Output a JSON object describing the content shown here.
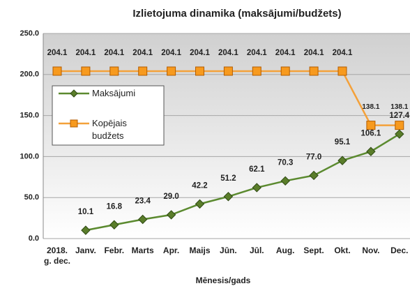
{
  "chart_data": {
    "type": "line",
    "title": "Izlietojuma dinamika (maksājumi/budžets)",
    "x_label": "Mēnesis/gads",
    "categories": [
      "2018. g. dec.",
      "Janv.",
      "Febr.",
      "Marts",
      "Apr.",
      "Maijs",
      "Jūn.",
      "Jūl.",
      "Aug.",
      "Sept.",
      "Okt.",
      "Nov.",
      "Dec."
    ],
    "series": [
      {
        "name": "Maksājumi",
        "color": "#5b8a2f",
        "marker": "diamond",
        "values": [
          null,
          10.1,
          16.8,
          23.4,
          29.0,
          42.2,
          51.2,
          62.1,
          70.3,
          77.0,
          95.1,
          106.1,
          127.4
        ],
        "value_labels": [
          null,
          "10.1",
          "16.8",
          "23.4",
          "29.0",
          "42.2",
          "51.2",
          "62.1",
          "70.3",
          "77.0",
          "95.1",
          "106.1",
          "127.4"
        ]
      },
      {
        "name": "Kopējais budžets",
        "color": "#f4a13a",
        "marker": "square",
        "values": [
          204.1,
          204.1,
          204.1,
          204.1,
          204.1,
          204.1,
          204.1,
          204.1,
          204.1,
          204.1,
          204.1,
          138.1,
          138.1
        ],
        "value_labels": [
          "204.1",
          "204.1",
          "204.1",
          "204.1",
          "204.1",
          "204.1",
          "204.1",
          "204.1",
          "204.1",
          "204.1",
          "204.1",
          "138.1",
          "138.1"
        ]
      }
    ],
    "ylim": [
      0,
      250
    ],
    "yticks": [
      {
        "value": 0,
        "label": "0.0"
      },
      {
        "value": 50,
        "label": "50.0"
      },
      {
        "value": 100,
        "label": "100.0"
      },
      {
        "value": 150,
        "label": "150.0"
      },
      {
        "value": 200,
        "label": "200.0"
      },
      {
        "value": 250,
        "label": "250.0"
      }
    ],
    "grid": true,
    "legend": "left"
  }
}
